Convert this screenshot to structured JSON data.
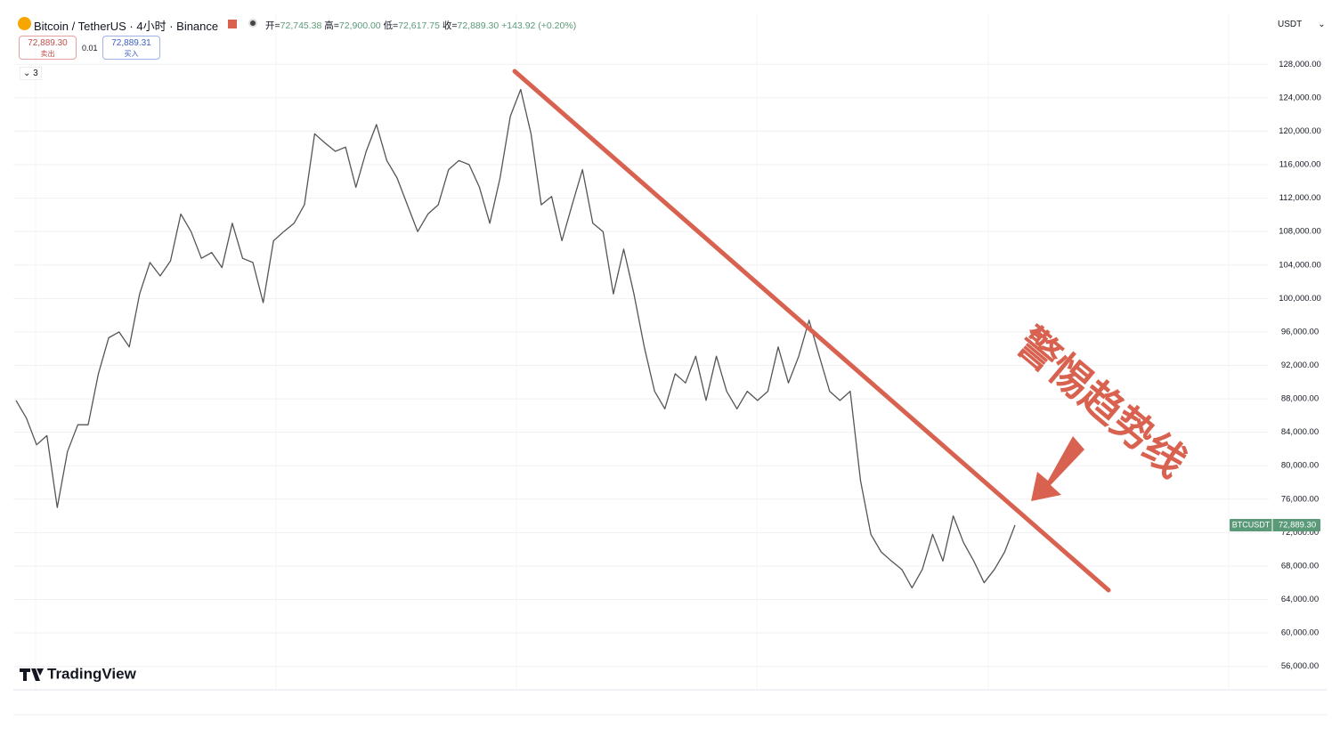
{
  "chart_data": {
    "type": "line",
    "title": "Bitcoin / TetherUS · 4小时 · Binance",
    "ohlc": [
      {
        "label": "开=",
        "value": "72,745.38"
      },
      {
        "label": "高=",
        "value": "72,900.00"
      },
      {
        "label": "低=",
        "value": "72,617.75"
      },
      {
        "label": "收=",
        "value": "72,889.30"
      }
    ],
    "change": "+143.92 (+0.20%)",
    "bid": {
      "price": "72,889.30",
      "label": "卖出"
    },
    "step": "0.01",
    "ask": {
      "price": "72,889.31",
      "label": "买入"
    },
    "indicator_count": "3",
    "currency": "USDT",
    "price_tag": {
      "symbol": "BTCUSDT",
      "label": "72,889.30"
    },
    "annotation": "警惕趋势线",
    "brand": "TradingView",
    "color": "#555555",
    "values": [
      87800,
      85700,
      82500,
      83600,
      75000,
      81700,
      84900,
      84900,
      91000,
      95300,
      96000,
      94200,
      100550,
      104300,
      102700,
      104500,
      110100,
      108000,
      104800,
      105500,
      103700,
      109000,
      104800,
      104300,
      99500,
      106900,
      108000,
      109000,
      111200,
      119700,
      118600,
      117600,
      118100,
      113300,
      117600,
      120800,
      116500,
      114400,
      111200,
      108000,
      110100,
      111200,
      115400,
      116500,
      116000,
      113300,
      109000,
      114400,
      121800,
      125000,
      119700,
      111200,
      112200,
      106900,
      111200,
      115400,
      109000,
      108000,
      100550,
      105900,
      100550,
      94200,
      88900,
      86800,
      91000,
      89900,
      93100,
      87800,
      93100,
      88900,
      86800,
      88900,
      87800,
      88900,
      94200,
      89900,
      93100,
      97400,
      93100,
      88900,
      87800,
      88900,
      78200,
      71800,
      69700,
      68600,
      67600,
      65400,
      67600,
      71800,
      68600,
      74000,
      70800,
      68600,
      66000,
      67600,
      69700,
      72889.3
    ],
    "ylim": [
      53200,
      132500
    ],
    "yticks": [
      {
        "value": 56000,
        "label": "56,000.00"
      },
      {
        "value": 60000,
        "label": "60,000.00"
      },
      {
        "value": 64000,
        "label": "64,000.00"
      },
      {
        "value": 68000,
        "label": "68,000.00"
      },
      {
        "value": 72000,
        "label": "72,000.00"
      },
      {
        "value": 76000,
        "label": "76,000.00"
      },
      {
        "value": 80000,
        "label": "80,000.00"
      },
      {
        "value": 84000,
        "label": "84,000.00"
      },
      {
        "value": 88000,
        "label": "88,000.00"
      },
      {
        "value": 92000,
        "label": "92,000.00"
      },
      {
        "value": 96000,
        "label": "96,000.00"
      },
      {
        "value": 100000,
        "label": "100,000.00"
      },
      {
        "value": 104000,
        "label": "104,000.00"
      },
      {
        "value": 108000,
        "label": "108,000.00"
      },
      {
        "value": 112000,
        "label": "112,000.00"
      },
      {
        "value": 116000,
        "label": "116,000.00"
      },
      {
        "value": 120000,
        "label": "120,000.00"
      },
      {
        "value": 124000,
        "label": "124,000.00"
      },
      {
        "value": 128000,
        "label": "128,000.00"
      }
    ],
    "grid": true
  }
}
